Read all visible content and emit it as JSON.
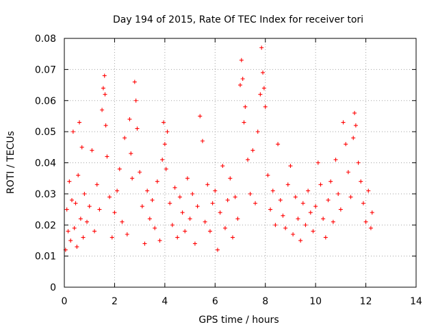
{
  "chart_data": {
    "type": "scatter",
    "title": "Day 194 of 2015, Rate Of TEC Index for receiver tori",
    "xlabel": "GPS time / hours",
    "ylabel": "ROTI / TECUs",
    "xlim": [
      0,
      14
    ],
    "ylim": [
      0,
      0.08
    ],
    "xticks": [
      "0",
      "2",
      "4",
      "6",
      "8",
      "10",
      "12",
      "14"
    ],
    "yticks": [
      "0",
      "0.01",
      "0.02",
      "0.03",
      "0.04",
      "0.05",
      "0.06",
      "0.07",
      "0.08"
    ],
    "grid": true,
    "marker": "+",
    "color": "#ff0000",
    "series": [
      {
        "name": "ROTI",
        "x": [
          0.05,
          0.1,
          0.15,
          0.2,
          0.25,
          0.3,
          0.35,
          0.4,
          0.45,
          0.5,
          0.55,
          0.6,
          0.65,
          0.7,
          0.75,
          0.8,
          0.9,
          1.0,
          1.1,
          1.2,
          1.3,
          1.4,
          1.5,
          1.55,
          1.6,
          1.62,
          1.65,
          1.7,
          1.8,
          1.9,
          2.0,
          2.1,
          2.2,
          2.3,
          2.4,
          2.5,
          2.6,
          2.65,
          2.7,
          2.8,
          2.85,
          2.9,
          3.0,
          3.1,
          3.2,
          3.3,
          3.4,
          3.5,
          3.6,
          3.7,
          3.8,
          3.9,
          3.95,
          4.0,
          4.05,
          4.1,
          4.2,
          4.3,
          4.4,
          4.5,
          4.6,
          4.7,
          4.8,
          4.9,
          5.0,
          5.1,
          5.2,
          5.3,
          5.4,
          5.5,
          5.6,
          5.7,
          5.8,
          5.9,
          6.0,
          6.1,
          6.2,
          6.3,
          6.4,
          6.5,
          6.6,
          6.7,
          6.8,
          6.9,
          7.0,
          7.05,
          7.1,
          7.15,
          7.2,
          7.3,
          7.4,
          7.5,
          7.6,
          7.7,
          7.8,
          7.85,
          7.9,
          7.95,
          8.0,
          8.1,
          8.2,
          8.3,
          8.4,
          8.5,
          8.6,
          8.7,
          8.8,
          8.9,
          9.0,
          9.1,
          9.2,
          9.3,
          9.4,
          9.5,
          9.6,
          9.7,
          9.8,
          9.9,
          10.0,
          10.1,
          10.2,
          10.3,
          10.4,
          10.5,
          10.6,
          10.7,
          10.8,
          10.9,
          11.0,
          11.1,
          11.2,
          11.3,
          11.4,
          11.5,
          11.55,
          11.6,
          11.7,
          11.8,
          11.9,
          12.0,
          12.1,
          12.2,
          12.25
        ],
        "y": [
          0.012,
          0.025,
          0.018,
          0.034,
          0.015,
          0.028,
          0.05,
          0.019,
          0.027,
          0.013,
          0.036,
          0.053,
          0.022,
          0.045,
          0.016,
          0.03,
          0.021,
          0.026,
          0.044,
          0.018,
          0.033,
          0.025,
          0.057,
          0.064,
          0.068,
          0.062,
          0.052,
          0.042,
          0.029,
          0.016,
          0.024,
          0.031,
          0.038,
          0.021,
          0.048,
          0.017,
          0.054,
          0.043,
          0.035,
          0.066,
          0.06,
          0.051,
          0.037,
          0.026,
          0.014,
          0.031,
          0.022,
          0.028,
          0.019,
          0.034,
          0.015,
          0.041,
          0.053,
          0.046,
          0.038,
          0.05,
          0.027,
          0.02,
          0.032,
          0.016,
          0.029,
          0.024,
          0.018,
          0.035,
          0.022,
          0.03,
          0.014,
          0.026,
          0.055,
          0.047,
          0.021,
          0.033,
          0.018,
          0.027,
          0.031,
          0.012,
          0.024,
          0.039,
          0.019,
          0.028,
          0.035,
          0.016,
          0.029,
          0.022,
          0.065,
          0.073,
          0.067,
          0.053,
          0.058,
          0.041,
          0.03,
          0.044,
          0.027,
          0.05,
          0.062,
          0.077,
          0.069,
          0.064,
          0.058,
          0.036,
          0.025,
          0.031,
          0.02,
          0.046,
          0.028,
          0.023,
          0.019,
          0.033,
          0.039,
          0.017,
          0.029,
          0.022,
          0.015,
          0.027,
          0.02,
          0.031,
          0.024,
          0.018,
          0.026,
          0.04,
          0.033,
          0.022,
          0.016,
          0.028,
          0.034,
          0.021,
          0.041,
          0.03,
          0.025,
          0.053,
          0.046,
          0.037,
          0.029,
          0.048,
          0.056,
          0.052,
          0.04,
          0.034,
          0.027,
          0.021,
          0.031,
          0.019,
          0.024
        ]
      }
    ]
  }
}
